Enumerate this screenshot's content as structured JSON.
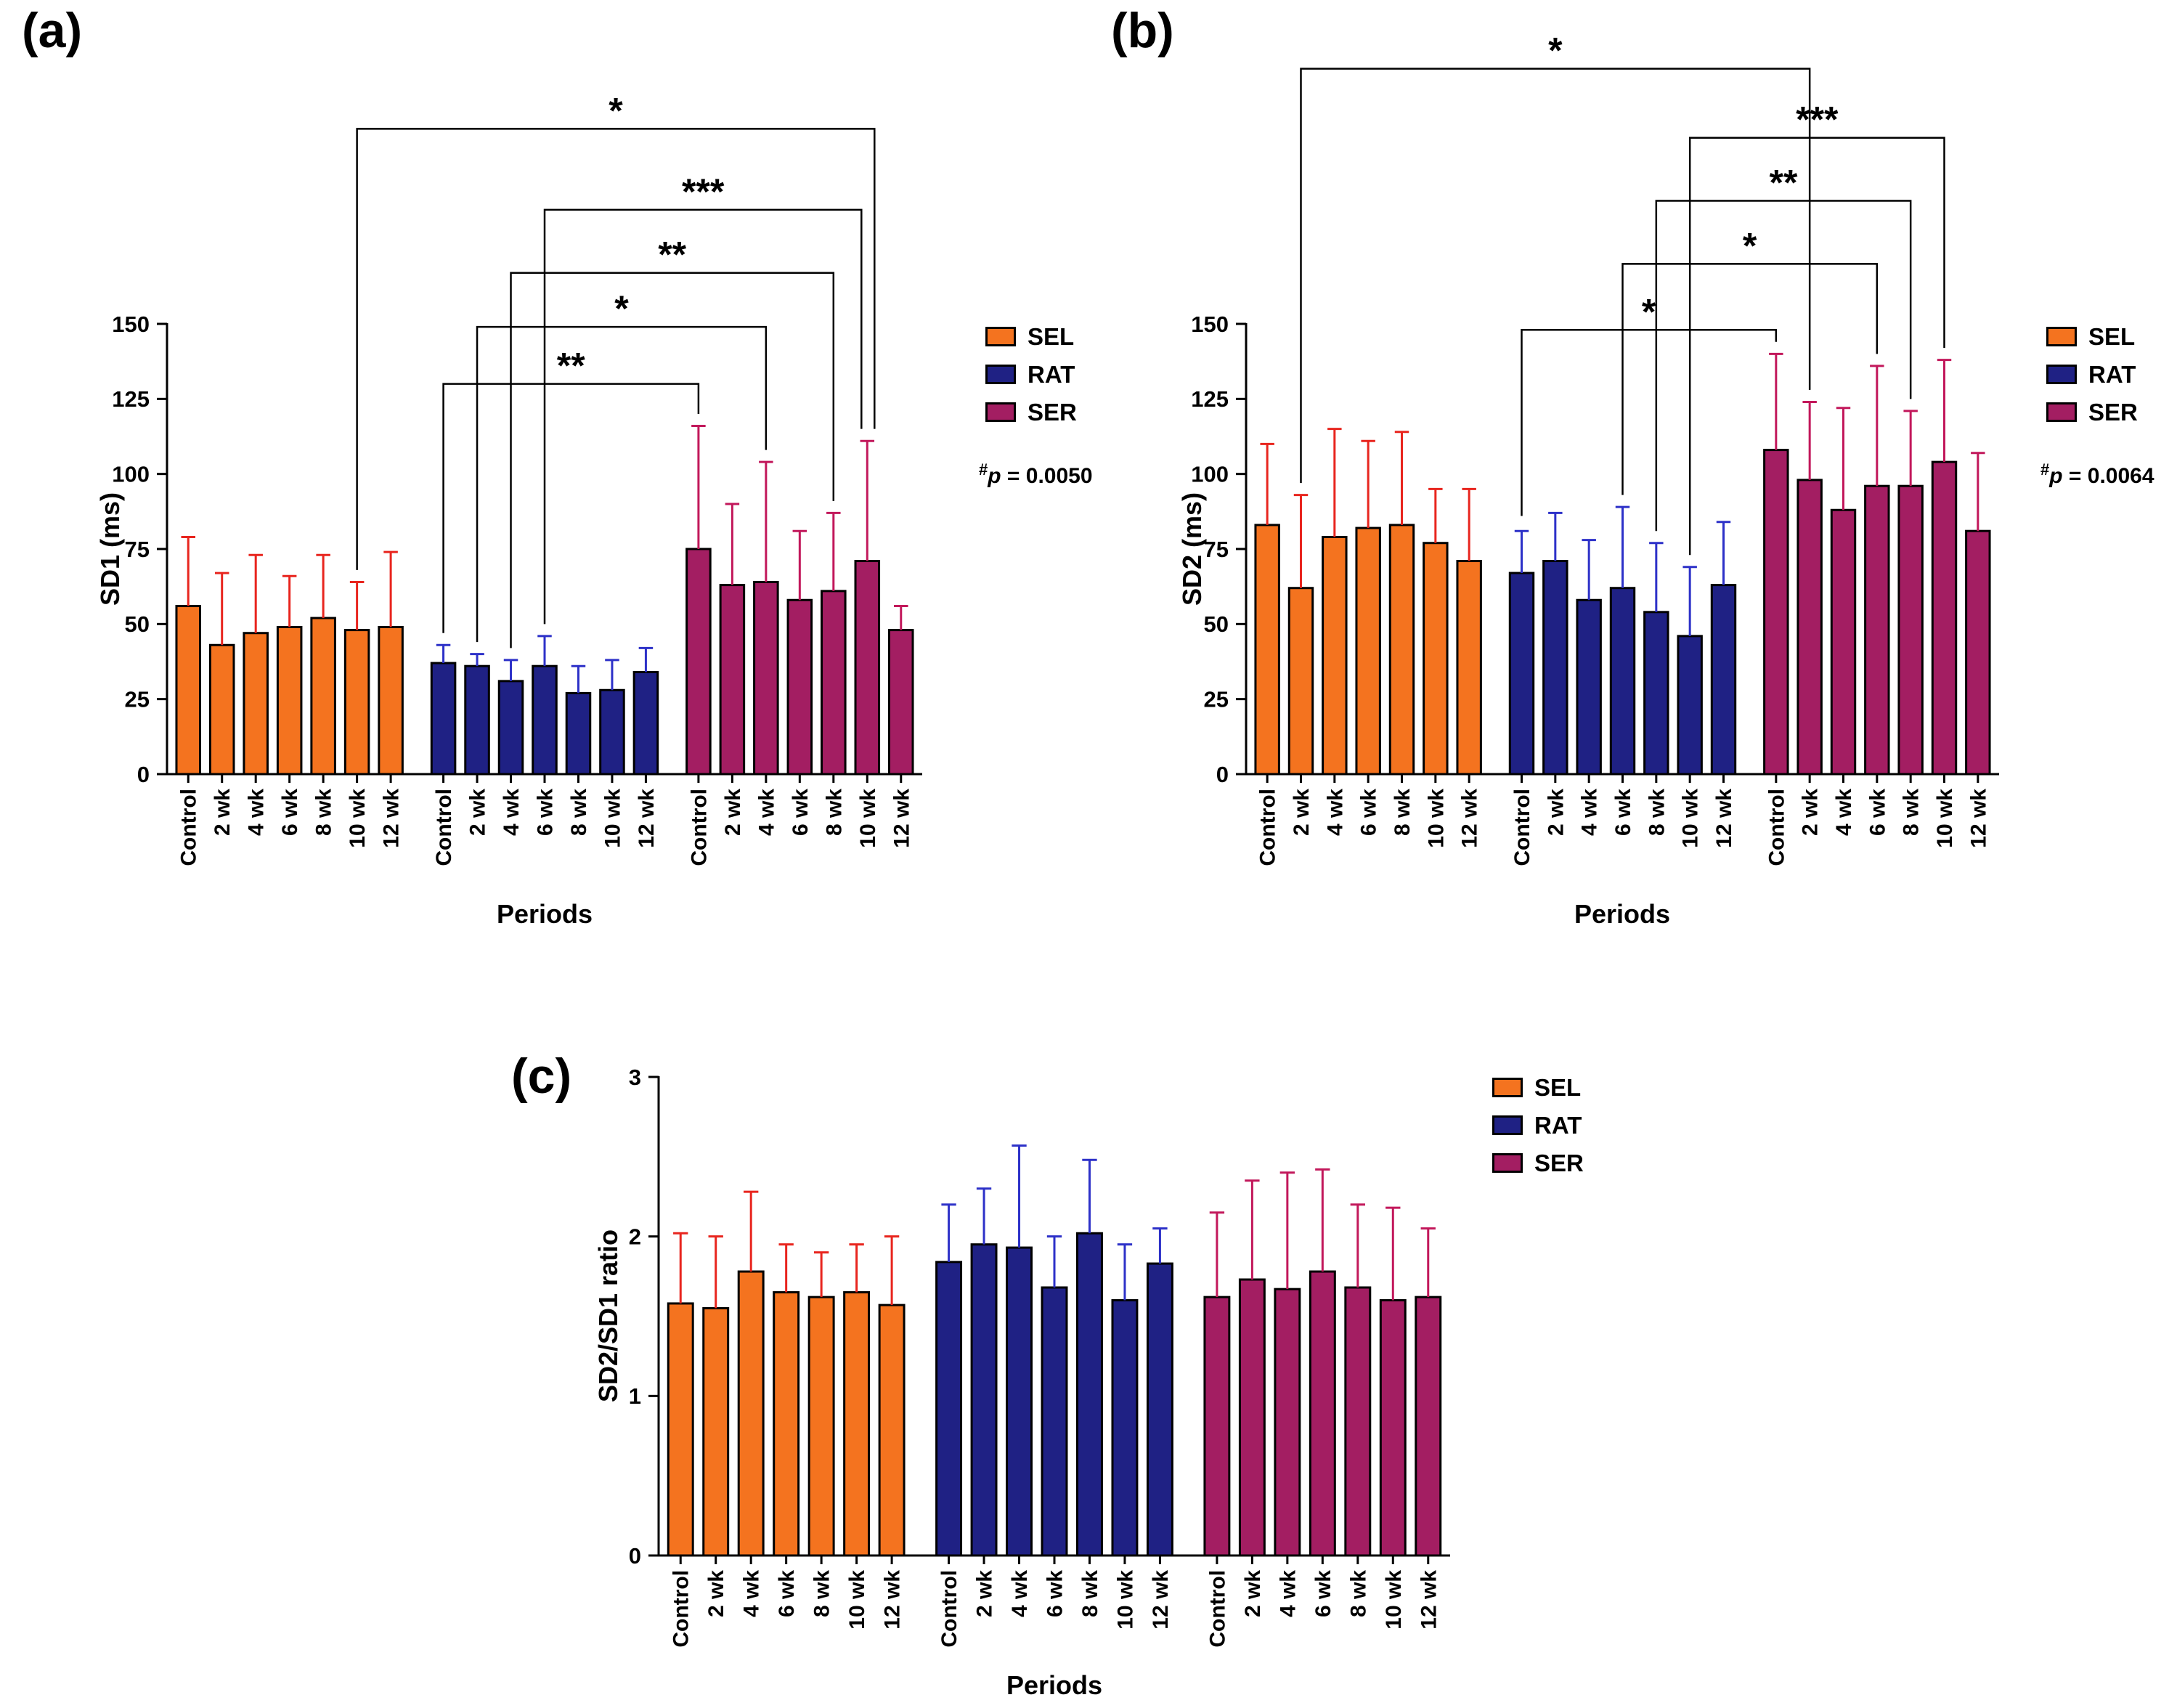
{
  "figure": {
    "background": "#FFFFFF"
  },
  "legend": {
    "position": "right",
    "items": [
      {
        "label": "SEL",
        "fill": "#F4731F",
        "error_color": "#E8251E"
      },
      {
        "label": "RAT",
        "fill": "#1F2184",
        "error_color": "#2D31C8"
      },
      {
        "label": "SER",
        "fill": "#A31E62",
        "error_color": "#C2185B"
      }
    ]
  },
  "chart_data": [
    {
      "id": "a",
      "panel_label": "(a)",
      "type": "bar",
      "xlabel": "Periods",
      "ylabel": "SD1 (ms)",
      "ylim": [
        0,
        150
      ],
      "yticks": [
        0,
        25,
        50,
        75,
        100,
        125,
        150
      ],
      "categories": [
        "Control",
        "2 wk",
        "4 wk",
        "6 wk",
        "8 wk",
        "10 wk",
        "12 wk"
      ],
      "series": [
        {
          "name": "SEL",
          "color": "#F4731F",
          "error_color": "#E8251E",
          "values": [
            56,
            43,
            47,
            49,
            52,
            48,
            49
          ],
          "errors": [
            23,
            24,
            26,
            17,
            21,
            16,
            25
          ]
        },
        {
          "name": "RAT",
          "color": "#1F2184",
          "error_color": "#2D31C8",
          "values": [
            37,
            36,
            31,
            36,
            27,
            28,
            34
          ],
          "errors": [
            6,
            4,
            7,
            10,
            9,
            10,
            8
          ]
        },
        {
          "name": "SER",
          "color": "#A31E62",
          "error_color": "#C2185B",
          "values": [
            75,
            63,
            64,
            58,
            61,
            71,
            48
          ],
          "errors": [
            41,
            27,
            40,
            23,
            26,
            40,
            8
          ]
        }
      ],
      "annotation": {
        "hash": "#",
        "p": "p",
        "text": " = 0.0050"
      },
      "significance_brackets": [
        {
          "label": "**",
          "from": {
            "series": "RAT",
            "category": "Control"
          },
          "to": {
            "series": "SER",
            "category": "Control"
          },
          "top": 130,
          "from_end": 47,
          "to_end": 120
        },
        {
          "label": "*",
          "from": {
            "series": "RAT",
            "category": "2 wk"
          },
          "to": {
            "series": "SER",
            "category": "4 wk"
          },
          "top": 149,
          "from_end": 44,
          "to_end": 108
        },
        {
          "label": "**",
          "from": {
            "series": "RAT",
            "category": "4 wk"
          },
          "to": {
            "series": "SER",
            "category": "8 wk"
          },
          "top": 167,
          "from_end": 42,
          "to_end": 91
        },
        {
          "label": "***",
          "from": {
            "series": "RAT",
            "category": "6 wk"
          },
          "to": {
            "series": "SER",
            "category": "10 wk"
          },
          "top": 188,
          "from_end": 50,
          "to_end": 115,
          "to_dx": -8
        },
        {
          "label": "*",
          "from": {
            "series": "SEL",
            "category": "10 wk"
          },
          "to": {
            "series": "SER",
            "category": "10 wk"
          },
          "top": 215,
          "from_end": 68,
          "to_end": 115,
          "to_dx": 10
        }
      ]
    },
    {
      "id": "b",
      "panel_label": "(b)",
      "type": "bar",
      "xlabel": "Periods",
      "ylabel": "SD2 (ms)",
      "ylim": [
        0,
        150
      ],
      "yticks": [
        0,
        25,
        50,
        75,
        100,
        125,
        150
      ],
      "categories": [
        "Control",
        "2 wk",
        "4 wk",
        "6 wk",
        "8 wk",
        "10 wk",
        "12 wk"
      ],
      "series": [
        {
          "name": "SEL",
          "color": "#F4731F",
          "error_color": "#E8251E",
          "values": [
            83,
            62,
            79,
            82,
            83,
            77,
            71
          ],
          "errors": [
            27,
            31,
            36,
            29,
            31,
            18,
            24
          ]
        },
        {
          "name": "RAT",
          "color": "#1F2184",
          "error_color": "#2D31C8",
          "values": [
            67,
            71,
            58,
            62,
            54,
            46,
            63
          ],
          "errors": [
            14,
            16,
            20,
            27,
            23,
            23,
            21
          ]
        },
        {
          "name": "SER",
          "color": "#A31E62",
          "error_color": "#C2185B",
          "values": [
            108,
            98,
            88,
            96,
            96,
            104,
            81
          ],
          "errors": [
            32,
            26,
            34,
            40,
            25,
            34,
            26
          ]
        }
      ],
      "annotation": {
        "hash": "#",
        "p": "p",
        "text": " = 0.0064"
      },
      "significance_brackets": [
        {
          "label": "*",
          "from": {
            "series": "RAT",
            "category": "Control"
          },
          "to": {
            "series": "SER",
            "category": "Control"
          },
          "top": 148,
          "from_end": 86,
          "to_end": 144
        },
        {
          "label": "*",
          "from": {
            "series": "RAT",
            "category": "6 wk"
          },
          "to": {
            "series": "SER",
            "category": "6 wk"
          },
          "top": 170,
          "from_end": 93,
          "to_end": 140
        },
        {
          "label": "**",
          "from": {
            "series": "RAT",
            "category": "8 wk"
          },
          "to": {
            "series": "SER",
            "category": "8 wk"
          },
          "top": 191,
          "from_end": 81,
          "to_end": 125
        },
        {
          "label": "***",
          "from": {
            "series": "RAT",
            "category": "10 wk"
          },
          "to": {
            "series": "SER",
            "category": "10 wk"
          },
          "top": 212,
          "from_end": 73,
          "to_end": 142
        },
        {
          "label": "*",
          "from": {
            "series": "SEL",
            "category": "2 wk"
          },
          "to": {
            "series": "SER",
            "category": "2 wk"
          },
          "top": 235,
          "from_end": 97,
          "to_end": 128
        }
      ]
    },
    {
      "id": "c",
      "panel_label": "(c)",
      "type": "bar",
      "xlabel": "Periods",
      "ylabel": "SD2/SD1 ratio",
      "ylim": [
        0,
        3
      ],
      "yticks": [
        0,
        1,
        2,
        3
      ],
      "categories": [
        "Control",
        "2 wk",
        "4 wk",
        "6 wk",
        "8 wk",
        "10 wk",
        "12 wk"
      ],
      "series": [
        {
          "name": "SEL",
          "color": "#F4731F",
          "error_color": "#E8251E",
          "values": [
            1.58,
            1.55,
            1.78,
            1.65,
            1.62,
            1.65,
            1.57
          ],
          "errors": [
            0.44,
            0.45,
            0.5,
            0.3,
            0.28,
            0.3,
            0.43
          ]
        },
        {
          "name": "RAT",
          "color": "#1F2184",
          "error_color": "#2D31C8",
          "values": [
            1.84,
            1.95,
            1.93,
            1.68,
            2.02,
            1.6,
            1.83
          ],
          "errors": [
            0.36,
            0.35,
            0.64,
            0.32,
            0.46,
            0.35,
            0.22
          ]
        },
        {
          "name": "SER",
          "color": "#A31E62",
          "error_color": "#C2185B",
          "values": [
            1.62,
            1.73,
            1.67,
            1.78,
            1.68,
            1.6,
            1.62
          ],
          "errors": [
            0.53,
            0.62,
            0.73,
            0.64,
            0.52,
            0.58,
            0.43
          ]
        }
      ],
      "significance_brackets": []
    }
  ]
}
